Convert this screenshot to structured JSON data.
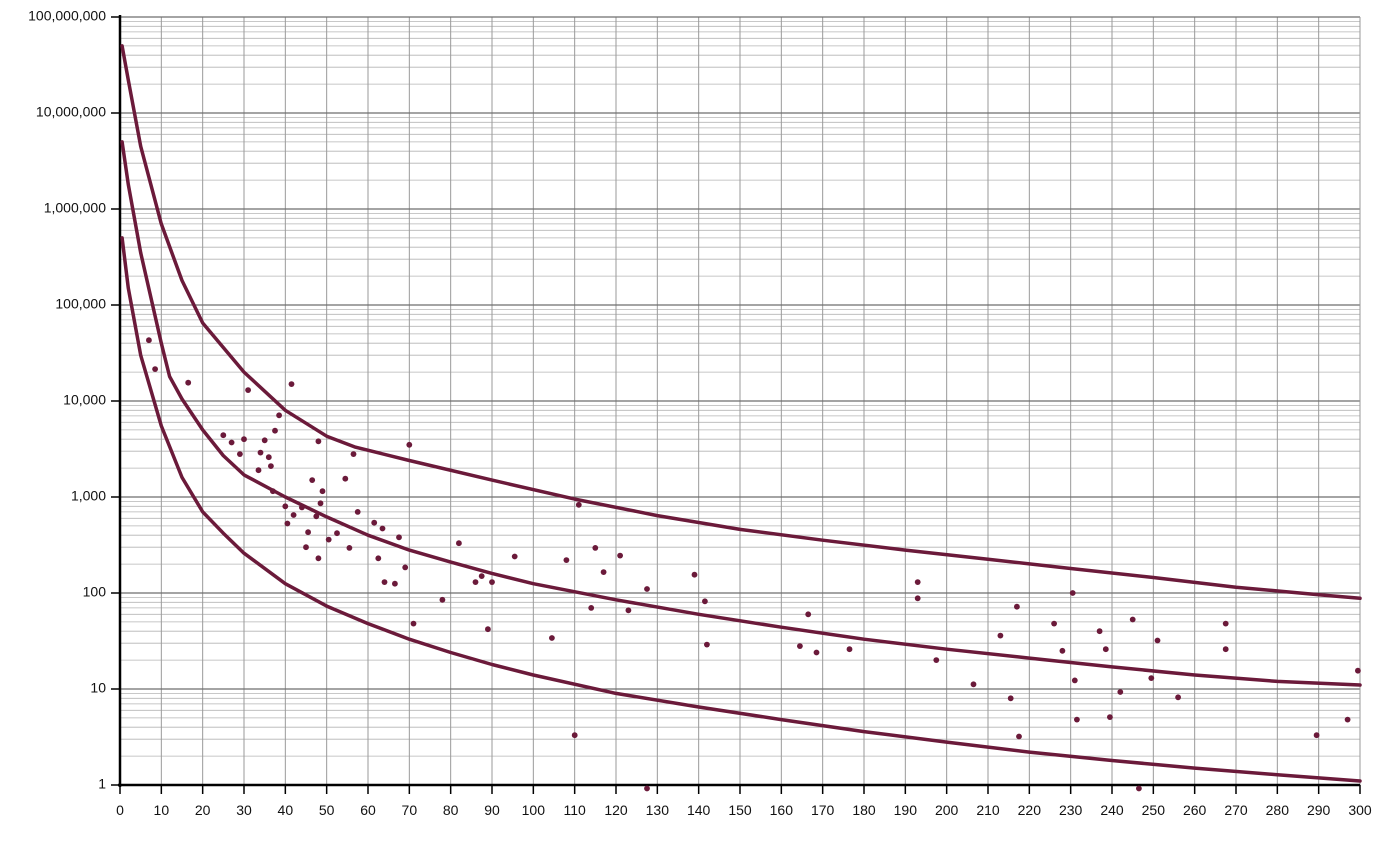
{
  "chart_data": {
    "type": "scatter",
    "title": "",
    "xlabel": "",
    "ylabel": "",
    "xlim": [
      0,
      300
    ],
    "ylim": [
      1,
      100000000
    ],
    "y_scale": "log",
    "grid": true,
    "x_ticks": [
      "0",
      "10",
      "20",
      "30",
      "40",
      "50",
      "60",
      "70",
      "80",
      "90",
      "100",
      "110",
      "120",
      "130",
      "140",
      "150",
      "160",
      "170",
      "180",
      "190",
      "200",
      "210",
      "220",
      "230",
      "240",
      "250",
      "260",
      "270",
      "280",
      "290",
      "300"
    ],
    "y_ticks": [
      {
        "value": 1,
        "label": "1"
      },
      {
        "value": 10,
        "label": "10"
      },
      {
        "value": 100,
        "label": "100"
      },
      {
        "value": 1000,
        "label": "1,000"
      },
      {
        "value": 10000,
        "label": "10,000"
      },
      {
        "value": 100000,
        "label": "100,000"
      },
      {
        "value": 1000000,
        "label": "1,000,000"
      },
      {
        "value": 10000000,
        "label": "10,000,000"
      },
      {
        "value": 100000000,
        "label": "100,000,000"
      }
    ],
    "curve_color": "#6b1a3a",
    "point_color": "#6b1a3a",
    "grid_color": "#9a9a9a",
    "curves": [
      {
        "points": [
          [
            0.5,
            50000000
          ],
          [
            2,
            22000000
          ],
          [
            5,
            4500000
          ],
          [
            10,
            700000
          ],
          [
            15,
            180000
          ],
          [
            20,
            65000
          ],
          [
            30,
            20000
          ],
          [
            40,
            8000
          ],
          [
            50,
            4300
          ],
          [
            57,
            3300
          ],
          [
            70,
            2400
          ],
          [
            90,
            1500
          ],
          [
            110,
            950
          ],
          [
            130,
            640
          ],
          [
            150,
            460
          ],
          [
            170,
            355
          ],
          [
            190,
            280
          ],
          [
            210,
            225
          ],
          [
            230,
            180
          ],
          [
            250,
            145
          ],
          [
            270,
            115
          ],
          [
            290,
            96
          ],
          [
            300,
            88
          ]
        ]
      },
      {
        "points": [
          [
            0.5,
            5000000
          ],
          [
            2,
            1800000
          ],
          [
            5,
            350000
          ],
          [
            10,
            40000
          ],
          [
            12,
            18000
          ],
          [
            15,
            10500
          ],
          [
            20,
            5000
          ],
          [
            25,
            2700
          ],
          [
            30,
            1700
          ],
          [
            40,
            1000
          ],
          [
            50,
            620
          ],
          [
            60,
            400
          ],
          [
            70,
            280
          ],
          [
            80,
            210
          ],
          [
            90,
            160
          ],
          [
            100,
            125
          ],
          [
            120,
            85
          ],
          [
            140,
            60
          ],
          [
            160,
            44
          ],
          [
            180,
            33
          ],
          [
            200,
            26
          ],
          [
            220,
            21
          ],
          [
            240,
            17
          ],
          [
            260,
            14
          ],
          [
            280,
            12
          ],
          [
            300,
            11
          ]
        ]
      },
      {
        "points": [
          [
            0.5,
            500000
          ],
          [
            2,
            150000
          ],
          [
            5,
            30000
          ],
          [
            10,
            5500
          ],
          [
            15,
            1600
          ],
          [
            20,
            700
          ],
          [
            25,
            420
          ],
          [
            30,
            260
          ],
          [
            40,
            125
          ],
          [
            50,
            73
          ],
          [
            60,
            48
          ],
          [
            70,
            33
          ],
          [
            80,
            24
          ],
          [
            90,
            18
          ],
          [
            100,
            14
          ],
          [
            120,
            9
          ],
          [
            140,
            6.5
          ],
          [
            160,
            4.8
          ],
          [
            180,
            3.6
          ],
          [
            200,
            2.8
          ],
          [
            220,
            2.2
          ],
          [
            240,
            1.8
          ],
          [
            260,
            1.5
          ],
          [
            280,
            1.28
          ],
          [
            300,
            1.1
          ]
        ]
      }
    ],
    "points": [
      [
        7,
        43000
      ],
      [
        8.5,
        21500
      ],
      [
        16.5,
        15500
      ],
      [
        25,
        4400
      ],
      [
        27,
        3700
      ],
      [
        29,
        2800
      ],
      [
        30,
        4000
      ],
      [
        31,
        13000
      ],
      [
        33.5,
        1900
      ],
      [
        34,
        2900
      ],
      [
        35,
        3900
      ],
      [
        36,
        2600
      ],
      [
        36.5,
        2100
      ],
      [
        37,
        1150
      ],
      [
        37.5,
        4900
      ],
      [
        38.5,
        7100
      ],
      [
        40,
        800
      ],
      [
        40.5,
        530
      ],
      [
        41.5,
        15000
      ],
      [
        42,
        650
      ],
      [
        44,
        780
      ],
      [
        45,
        300
      ],
      [
        45.5,
        430
      ],
      [
        46.5,
        1500
      ],
      [
        47.5,
        630
      ],
      [
        48,
        230
      ],
      [
        48,
        3800
      ],
      [
        48.5,
        860
      ],
      [
        49,
        1150
      ],
      [
        50.5,
        360
      ],
      [
        52.5,
        420
      ],
      [
        54.5,
        1550
      ],
      [
        55.5,
        295
      ],
      [
        56.5,
        2800
      ],
      [
        57.5,
        700
      ],
      [
        61.5,
        540
      ],
      [
        62.5,
        230
      ],
      [
        63.5,
        470
      ],
      [
        64,
        130
      ],
      [
        66.5,
        125
      ],
      [
        67.5,
        380
      ],
      [
        69,
        185
      ],
      [
        70,
        3500
      ],
      [
        71,
        48
      ],
      [
        78,
        85
      ],
      [
        82,
        330
      ],
      [
        86,
        130
      ],
      [
        87.5,
        150
      ],
      [
        89,
        42
      ],
      [
        90,
        130
      ],
      [
        95.5,
        240
      ],
      [
        104.5,
        34
      ],
      [
        108,
        220
      ],
      [
        110,
        3.3
      ],
      [
        111,
        830
      ],
      [
        114,
        70
      ],
      [
        115,
        295
      ],
      [
        117,
        165
      ],
      [
        121,
        245
      ],
      [
        123,
        66
      ],
      [
        127.5,
        110
      ],
      [
        127.5,
        0.92
      ],
      [
        139,
        155
      ],
      [
        141.5,
        82
      ],
      [
        142,
        29
      ],
      [
        164.5,
        28
      ],
      [
        166.5,
        60
      ],
      [
        168.5,
        24
      ],
      [
        176.5,
        26
      ],
      [
        193,
        130
      ],
      [
        193,
        88
      ],
      [
        197.5,
        20
      ],
      [
        206.5,
        11.2
      ],
      [
        213,
        36
      ],
      [
        215.5,
        8
      ],
      [
        217,
        72
      ],
      [
        217.5,
        3.2
      ],
      [
        226,
        48
      ],
      [
        228,
        25
      ],
      [
        230.5,
        100
      ],
      [
        231,
        12.3
      ],
      [
        231.5,
        4.8
      ],
      [
        237,
        40
      ],
      [
        238.5,
        26
      ],
      [
        239.5,
        5.1
      ],
      [
        242,
        9.3
      ],
      [
        245,
        53
      ],
      [
        246.5,
        0.92
      ],
      [
        249.5,
        13
      ],
      [
        251,
        32
      ],
      [
        256,
        8.2
      ],
      [
        267.5,
        48
      ],
      [
        267.5,
        26
      ],
      [
        289.5,
        3.3
      ],
      [
        297,
        4.8
      ],
      [
        299.5,
        15.5
      ]
    ]
  }
}
